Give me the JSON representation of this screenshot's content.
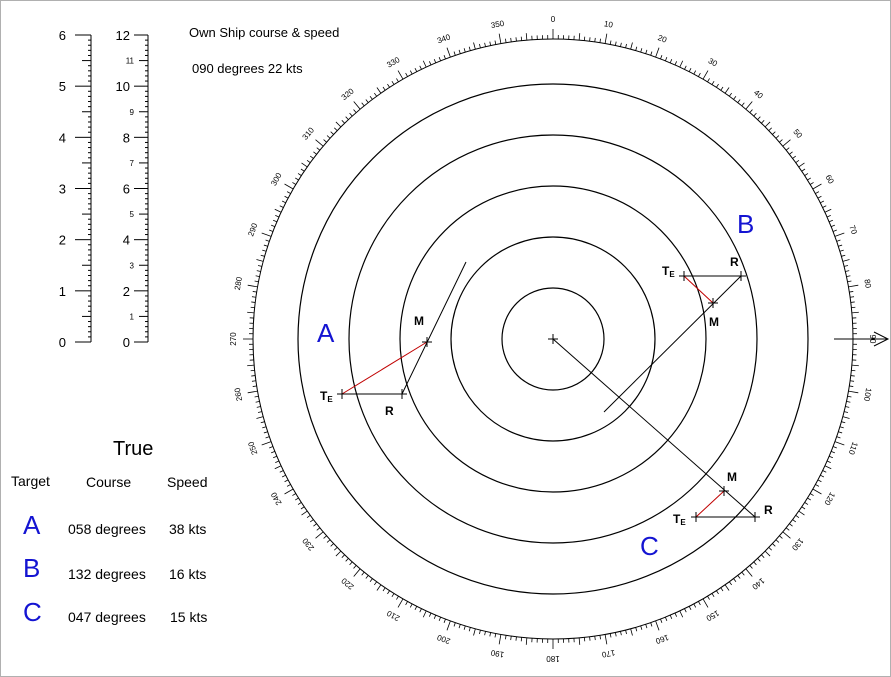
{
  "own_ship": {
    "title": "Own Ship course & speed",
    "value": "090 degrees  22 kts"
  },
  "scale": {
    "left_labels": [
      "0",
      "1",
      "2",
      "3",
      "4",
      "5",
      "6"
    ],
    "right_major_labels": [
      "0",
      "2",
      "4",
      "6",
      "8",
      "10",
      "12"
    ],
    "right_minor_labels": [
      "1",
      "3",
      "5",
      "7",
      "9",
      "11"
    ]
  },
  "compass": {
    "labels": [
      "0",
      "10",
      "20",
      "30",
      "40",
      "50",
      "60",
      "70",
      "80",
      "90",
      "100",
      "110",
      "120",
      "130",
      "140",
      "150",
      "160",
      "170",
      "180",
      "190",
      "200",
      "210",
      "220",
      "230",
      "240",
      "250",
      "260",
      "270",
      "280",
      "290",
      "300",
      "310",
      "320",
      "330",
      "340",
      "350"
    ]
  },
  "plot": {
    "target_letters": [
      "A",
      "B",
      "C"
    ],
    "te_label": "T",
    "te_sub": "E",
    "m_label": "M",
    "r_label": "R"
  },
  "table": {
    "title": "True",
    "headers": {
      "target": "Target",
      "course": "Course",
      "speed": "Speed"
    },
    "rows": [
      {
        "target": "A",
        "course": "058 degrees",
        "speed": "38 kts"
      },
      {
        "target": "B",
        "course": "132 degrees",
        "speed": "16 kts"
      },
      {
        "target": "C",
        "course": "047 degrees",
        "speed": "15 kts"
      }
    ]
  },
  "colors": {
    "accent": "#1414d2",
    "vector_red": "#c00000",
    "line": "#000000"
  }
}
